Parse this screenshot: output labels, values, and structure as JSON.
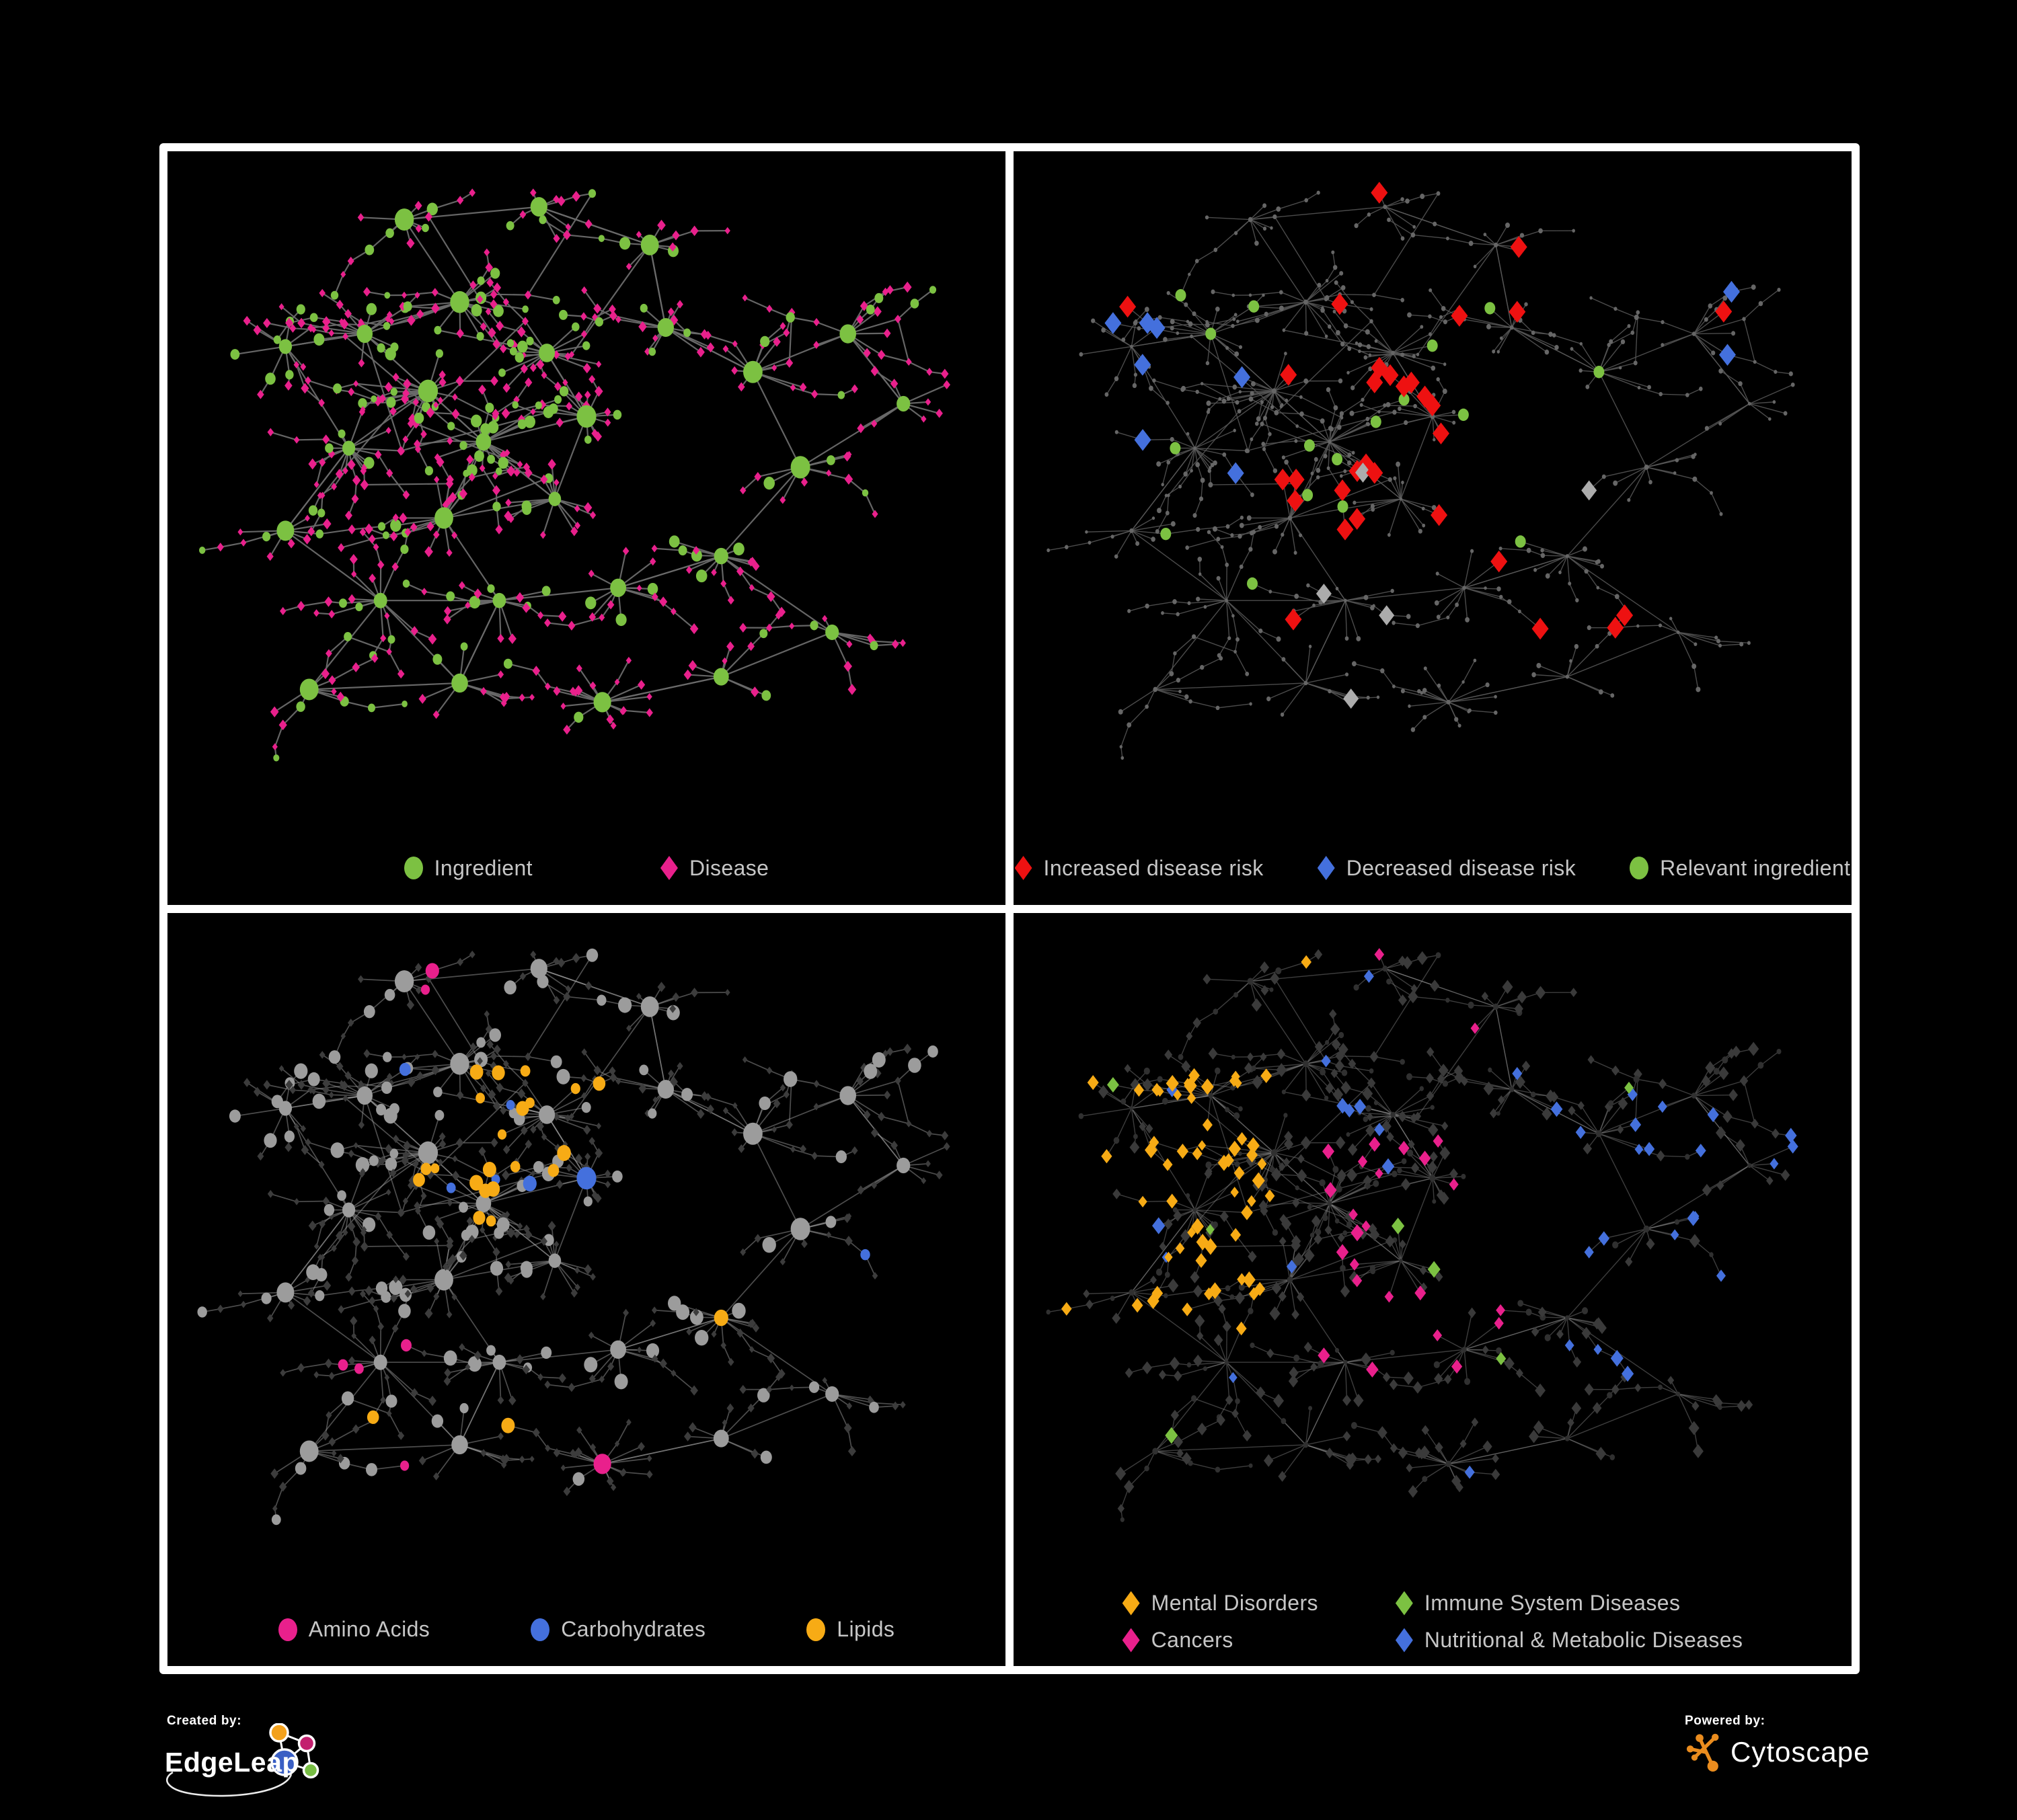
{
  "page": {
    "background": "#000000",
    "frame_color": "#FFFFFF"
  },
  "panels": [
    {
      "id": "ingredient-disease",
      "legend": [
        {
          "label": "Ingredient",
          "shape": "circle",
          "color": "#7CC142"
        },
        {
          "label": "Disease",
          "shape": "diamond",
          "color": "#E9208C"
        }
      ],
      "style": {
        "edge_color": "#6A6A6A",
        "edge_opacity": 0.95,
        "edge_width": 2.2,
        "ingredient_color": "#7CC142",
        "disease_color": "#E9208C"
      }
    },
    {
      "id": "disease-risk",
      "legend": [
        {
          "label": "Increased disease risk",
          "shape": "diamond",
          "color": "#EE1111"
        },
        {
          "label": "Decreased disease risk",
          "shape": "diamond",
          "color": "#4470DD"
        },
        {
          "label": "Relevant ingredient",
          "shape": "circle",
          "color": "#7CC142"
        }
      ],
      "style": {
        "edge_color": "#585858",
        "edge_opacity": 0.85,
        "edge_width": 1.4,
        "dim_color": "#666666",
        "increased_color": "#EE1111",
        "decreased_color": "#4470DD",
        "neutral_color": "#ACACAC",
        "ingredient_color": "#7CC142"
      }
    },
    {
      "id": "nutrient-classes",
      "legend": [
        {
          "label": "Amino Acids",
          "shape": "circle",
          "color": "#E9208C"
        },
        {
          "label": "Carbohydrates",
          "shape": "circle",
          "color": "#4470DD"
        },
        {
          "label": "Lipids",
          "shape": "circle",
          "color": "#F7AB15"
        }
      ],
      "style": {
        "edge_color": "#999999",
        "edge_opacity": 0.5,
        "edge_width": 1.7,
        "circle_default": "#9C9C9C",
        "diamond_default": "#3C3C3C",
        "amino_color": "#E9208C",
        "carb_color": "#4470DD",
        "lipid_color": "#F7AB15"
      }
    },
    {
      "id": "disease-classes",
      "legend": [
        {
          "label": "Mental Disorders",
          "shape": "diamond",
          "color": "#F7AB15"
        },
        {
          "label": "Immune System Diseases",
          "shape": "diamond",
          "color": "#7CC142"
        },
        {
          "label": "Cancers",
          "shape": "diamond",
          "color": "#E9208C"
        },
        {
          "label": "Nutritional & Metabolic Diseases",
          "shape": "diamond",
          "color": "#4470DD"
        }
      ],
      "style": {
        "edge_color": "#888888",
        "edge_opacity": 0.45,
        "edge_width": 1.4,
        "circle_default": "#303030",
        "diamond_default": "#3A3A3A",
        "mental_color": "#F7AB15",
        "immune_color": "#7CC142",
        "cancer_color": "#E9208C",
        "nutritional_color": "#4470DD"
      }
    }
  ],
  "footer": {
    "created_by_label": "Created by:",
    "created_by_name": "EdgeLeap",
    "powered_by_label": "Powered by:",
    "powered_by_name": "Cytoscape",
    "cytoscape_orange": "#EA8C1E",
    "edgeleap_colors": {
      "blue": "#3A5FC4",
      "orange": "#F3A11C",
      "pink": "#C31F6E",
      "green": "#77BD43"
    }
  },
  "legend_text_color": "#C6C6C6"
}
